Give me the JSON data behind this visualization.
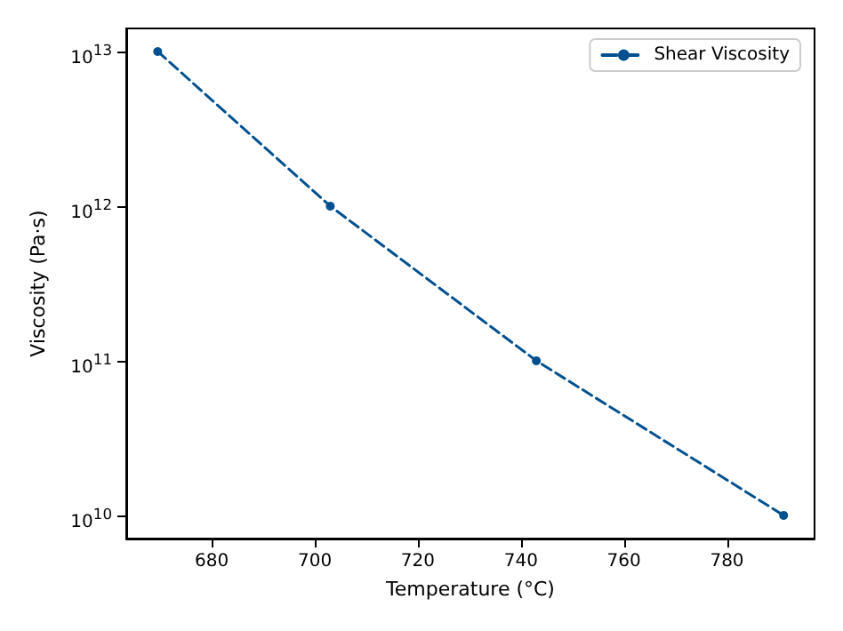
{
  "chart_data": {
    "type": "line",
    "xlabel": "Temperature (°C)",
    "ylabel": "Viscosity (Pa·s)",
    "x": [
      669.5,
      703,
      743,
      791
    ],
    "series": [
      {
        "name": "Shear Viscosity",
        "color": "#00508f",
        "values": [
          10000000000000.0,
          1000000000000.0,
          100000000000.0,
          10000000000.0
        ]
      }
    ],
    "log": "y",
    "xlim": [
      663.4,
      797
    ],
    "xticks": [
      680,
      700,
      720,
      740,
      760,
      780
    ],
    "ylim": [
      7080000000.0,
      14100000000000.0
    ],
    "yticks": [
      {
        "value": 10000000000.0,
        "label": "10$^{10}$"
      },
      {
        "value": 100000000000.0,
        "label": "10$^{11}$"
      },
      {
        "value": 1000000000000.0,
        "label": "10$^{12}$"
      },
      {
        "value": 10000000000000.0,
        "label": "10$^{13}$"
      }
    ],
    "grid": false,
    "legend": "top right",
    "marker": "circle",
    "line_style": "dashed"
  }
}
